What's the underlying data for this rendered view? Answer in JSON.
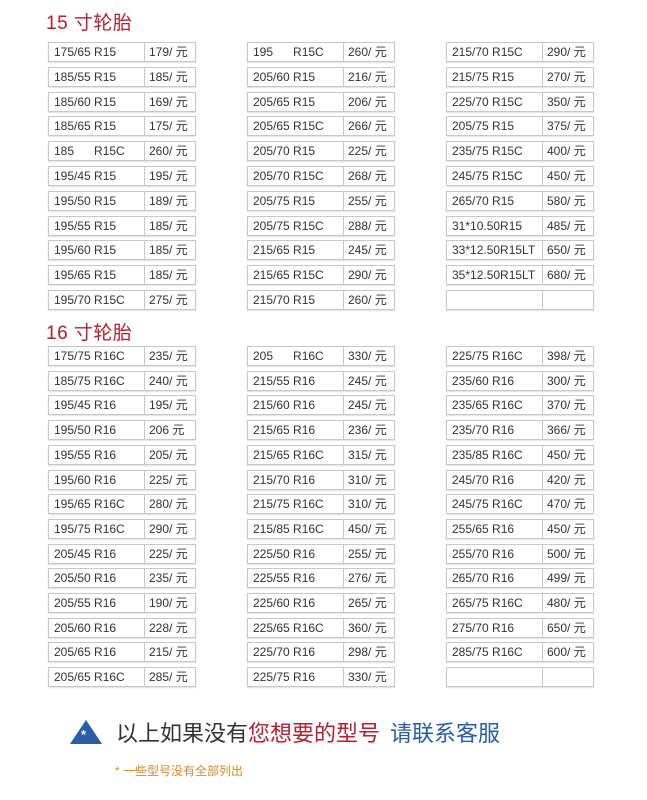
{
  "sections": [
    {
      "title": "15 寸轮胎",
      "columns": [
        [
          [
            "175/65 R15",
            "179/ 元"
          ],
          [
            "185/55 R15",
            "185/ 元"
          ],
          [
            "185/60 R15",
            "169/ 元"
          ],
          [
            "185/65 R15",
            "175/ 元"
          ],
          [
            "185      R15C",
            "260/ 元"
          ],
          [
            "195/45 R15",
            "195/ 元"
          ],
          [
            "195/50 R15",
            "189/ 元"
          ],
          [
            "195/55 R15",
            "185/ 元"
          ],
          [
            "195/60 R15",
            "185/ 元"
          ],
          [
            "195/65 R15",
            "185/ 元"
          ],
          [
            "195/70 R15C",
            "275/ 元"
          ]
        ],
        [
          [
            "195      R15C",
            "260/ 元"
          ],
          [
            "205/60 R15",
            "216/ 元"
          ],
          [
            "205/65 R15",
            "206/ 元"
          ],
          [
            "205/65 R15C",
            "266/ 元"
          ],
          [
            "205/70 R15",
            "225/ 元"
          ],
          [
            "205/70 R15C",
            "268/ 元"
          ],
          [
            "205/75 R15",
            "255/ 元"
          ],
          [
            "205/75 R15C",
            "288/ 元"
          ],
          [
            "215/65 R15",
            "245/ 元"
          ],
          [
            "215/65 R15C",
            "290/ 元"
          ],
          [
            "215/70 R15",
            "260/ 元"
          ]
        ],
        [
          [
            "215/70 R15C",
            "290/ 元"
          ],
          [
            "215/75 R15",
            "270/ 元"
          ],
          [
            "225/70 R15C",
            "350/ 元"
          ],
          [
            "205/75 R15",
            "375/ 元"
          ],
          [
            "235/75 R15C",
            "400/ 元"
          ],
          [
            "245/75 R15C",
            "450/ 元"
          ],
          [
            "265/70 R15",
            "580/ 元"
          ],
          [
            "31*10.50R15",
            "485/ 元"
          ],
          [
            "33*12.50R15LT",
            "650/ 元"
          ],
          [
            "35*12.50R15LT",
            "680/ 元"
          ],
          [
            "",
            ""
          ]
        ]
      ]
    },
    {
      "title": "16 寸轮胎",
      "columns": [
        [
          [
            "175/75 R16C",
            "235/ 元"
          ],
          [
            "185/75 R16C",
            "240/ 元"
          ],
          [
            "195/45 R16",
            "195/ 元"
          ],
          [
            "195/50 R16",
            "206 元"
          ],
          [
            "195/55 R16",
            "205/ 元"
          ],
          [
            "195/60 R16",
            "225/ 元"
          ],
          [
            "195/65 R16C",
            "280/ 元"
          ],
          [
            "195/75 R16C",
            "290/ 元"
          ],
          [
            "205/45 R16",
            "225/ 元"
          ],
          [
            "205/50 R16",
            "235/ 元"
          ],
          [
            "205/55 R16",
            "190/ 元"
          ],
          [
            "205/60 R16",
            "228/ 元"
          ],
          [
            "205/65 R16",
            "215/ 元"
          ],
          [
            "205/65 R16C",
            "285/ 元"
          ]
        ],
        [
          [
            "205      R16C",
            "330/ 元"
          ],
          [
            "215/55 R16",
            "245/ 元"
          ],
          [
            "215/60 R16",
            "245/ 元"
          ],
          [
            "215/65 R16",
            "236/ 元"
          ],
          [
            "215/65 R16C",
            "315/ 元"
          ],
          [
            "215/70 R16",
            "310/ 元"
          ],
          [
            "215/75 R16C",
            "310/ 元"
          ],
          [
            "215/85 R16C",
            "450/ 元"
          ],
          [
            "225/50 R16",
            "255/ 元"
          ],
          [
            "225/55 R16",
            "276/ 元"
          ],
          [
            "225/60 R16",
            "265/ 元"
          ],
          [
            "225/65 R16C",
            "360/ 元"
          ],
          [
            "225/70 R16",
            "298/ 元"
          ],
          [
            "225/75 R16",
            "330/ 元"
          ]
        ],
        [
          [
            "225/75 R16C",
            "398/ 元"
          ],
          [
            "235/60 R16",
            "300/ 元"
          ],
          [
            "235/65 R16C",
            "370/ 元"
          ],
          [
            "235/70 R16",
            "366/ 元"
          ],
          [
            "235/85 R16C",
            "450/ 元"
          ],
          [
            "245/70 R16",
            "420/ 元"
          ],
          [
            "245/75 R16C",
            "470/ 元"
          ],
          [
            "255/65 R16",
            "450/ 元"
          ],
          [
            "255/70 R16",
            "500/ 元"
          ],
          [
            "265/70 R16",
            "499/ 元"
          ],
          [
            "265/75 R16C",
            "480/ 元"
          ],
          [
            "275/70 R16",
            "650/ 元"
          ],
          [
            "285/75 R16C",
            "600/ 元"
          ],
          [
            "",
            ""
          ]
        ]
      ]
    }
  ],
  "notice": {
    "part1": "以上如果没有",
    "part2": "您想要的型号",
    "part3": "请联系客服",
    "icon": "warning-triangle-icon",
    "colors": {
      "red": "#b5202e",
      "blue": "#2a5da6"
    }
  },
  "footnote": "* 一些型号没有全部列出"
}
